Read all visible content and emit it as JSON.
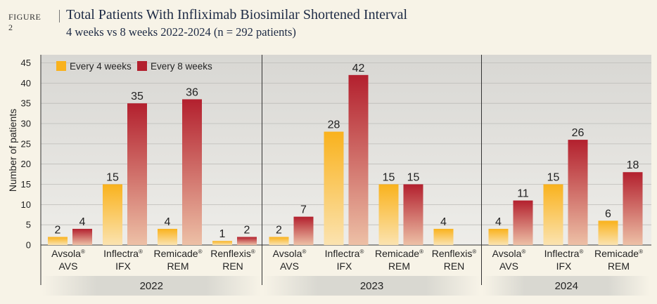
{
  "figure_label": "FIGURE 2",
  "title": "Total Patients With Infliximab Biosimilar Shortened Interval",
  "subtitle": "4 weeks vs 8 weeks 2022-2024 (n = 292 patients)",
  "colors": {
    "every4": "#f9b21d",
    "every8": "#b3202e",
    "panel": "#e1e0dc",
    "background": "#f7f3e7"
  },
  "chart_data": {
    "type": "bar",
    "ylabel": "Number of patients",
    "ylim": [
      0,
      47
    ],
    "yticks": [
      0,
      5,
      10,
      15,
      20,
      25,
      30,
      35,
      40,
      45
    ],
    "grid": true,
    "legend_position": "top-left",
    "series": [
      {
        "name": "Every 4 weeks",
        "key": "every4"
      },
      {
        "name": "Every 8 weeks",
        "key": "every8"
      }
    ],
    "groups": [
      {
        "year": "2022",
        "categories": [
          {
            "brand": "Avsola",
            "code": "AVS",
            "every4": 2,
            "every8": 4
          },
          {
            "brand": "Inflectra",
            "code": "IFX",
            "every4": 15,
            "every8": 35
          },
          {
            "brand": "Remicade",
            "code": "REM",
            "every4": 4,
            "every8": 36
          },
          {
            "brand": "Renflexis",
            "code": "REN",
            "every4": 1,
            "every8": 2
          }
        ]
      },
      {
        "year": "2023",
        "categories": [
          {
            "brand": "Avsola",
            "code": "AVS",
            "every4": 2,
            "every8": 7
          },
          {
            "brand": "Inflectra",
            "code": "IFX",
            "every4": 28,
            "every8": 42
          },
          {
            "brand": "Remicade",
            "code": "REM",
            "every4": 15,
            "every8": 15
          },
          {
            "brand": "Renflexis",
            "code": "REN",
            "every4": 4,
            "every8": null
          }
        ]
      },
      {
        "year": "2024",
        "categories": [
          {
            "brand": "Avsola",
            "code": "AVS",
            "every4": 4,
            "every8": 11
          },
          {
            "brand": "Inflectra",
            "code": "IFX",
            "every4": 15,
            "every8": 26
          },
          {
            "brand": "Remicade",
            "code": "REM",
            "every4": 6,
            "every8": 18
          }
        ]
      }
    ]
  }
}
